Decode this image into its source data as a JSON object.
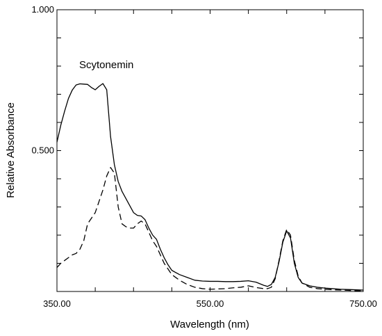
{
  "chart_data": {
    "type": "line",
    "title": "",
    "xlabel": "Wavelength (nm)",
    "ylabel": "Relative Absorbance",
    "xlim": [
      350,
      750
    ],
    "ylim": [
      0,
      1
    ],
    "x_tick_labels": [
      "350.00",
      "550.00",
      "750.00"
    ],
    "x_tick_values": [
      350,
      550,
      750
    ],
    "y_tick_labels": [
      "0.500",
      "1.000"
    ],
    "y_tick_values": [
      0.5,
      1.0
    ],
    "grid": false,
    "annotations": [
      {
        "text": "Scytonemin",
        "x": 386,
        "y": 0.78
      }
    ],
    "series": [
      {
        "style": "solid",
        "color": "#000000",
        "x": [
          350,
          355,
          360,
          365,
          370,
          375,
          380,
          385,
          390,
          395,
          400,
          405,
          410,
          415,
          420,
          425,
          430,
          435,
          440,
          445,
          450,
          455,
          460,
          465,
          470,
          475,
          480,
          485,
          490,
          495,
          500,
          510,
          520,
          530,
          540,
          550,
          560,
          570,
          580,
          590,
          600,
          610,
          620,
          625,
          630,
          635,
          640,
          645,
          650,
          655,
          660,
          665,
          670,
          680,
          690,
          700,
          710,
          720,
          730,
          740,
          750
        ],
        "y": [
          0.53,
          0.59,
          0.64,
          0.685,
          0.715,
          0.733,
          0.737,
          0.736,
          0.735,
          0.724,
          0.716,
          0.728,
          0.738,
          0.716,
          0.55,
          0.45,
          0.39,
          0.355,
          0.33,
          0.305,
          0.28,
          0.27,
          0.268,
          0.255,
          0.225,
          0.2,
          0.185,
          0.15,
          0.12,
          0.095,
          0.075,
          0.06,
          0.05,
          0.04,
          0.037,
          0.036,
          0.036,
          0.035,
          0.035,
          0.036,
          0.038,
          0.033,
          0.022,
          0.018,
          0.025,
          0.05,
          0.105,
          0.175,
          0.215,
          0.19,
          0.1,
          0.05,
          0.03,
          0.02,
          0.015,
          0.012,
          0.01,
          0.008,
          0.007,
          0.006,
          0.005
        ]
      },
      {
        "style": "dashed",
        "color": "#000000",
        "x": [
          350,
          355,
          360,
          365,
          370,
          375,
          380,
          385,
          390,
          395,
          400,
          405,
          410,
          415,
          420,
          425,
          430,
          435,
          440,
          445,
          450,
          455,
          460,
          465,
          470,
          475,
          480,
          485,
          490,
          495,
          500,
          510,
          520,
          530,
          540,
          550,
          560,
          570,
          580,
          590,
          600,
          610,
          620,
          625,
          630,
          635,
          640,
          645,
          650,
          655,
          660,
          665,
          670,
          680,
          690,
          700,
          710,
          720,
          730,
          740,
          750
        ],
        "y": [
          0.085,
          0.1,
          0.11,
          0.12,
          0.13,
          0.135,
          0.15,
          0.18,
          0.24,
          0.26,
          0.28,
          0.32,
          0.36,
          0.41,
          0.44,
          0.42,
          0.3,
          0.24,
          0.23,
          0.225,
          0.225,
          0.24,
          0.25,
          0.24,
          0.21,
          0.18,
          0.16,
          0.13,
          0.1,
          0.08,
          0.06,
          0.04,
          0.025,
          0.015,
          0.01,
          0.008,
          0.009,
          0.01,
          0.013,
          0.015,
          0.02,
          0.014,
          0.01,
          0.01,
          0.015,
          0.045,
          0.11,
          0.18,
          0.22,
          0.2,
          0.11,
          0.055,
          0.03,
          0.015,
          0.01,
          0.008,
          0.006,
          0.005,
          0.004,
          0.003,
          0.002
        ]
      }
    ]
  }
}
